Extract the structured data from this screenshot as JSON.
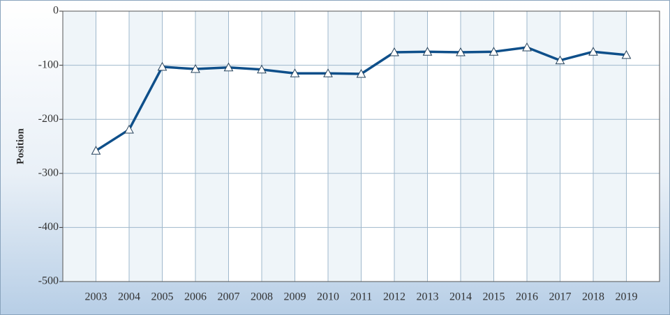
{
  "chart_data": {
    "type": "line",
    "y_label": "Position",
    "categories": [
      "2003",
      "2004",
      "2005",
      "2006",
      "2007",
      "2008",
      "2009",
      "2010",
      "2011",
      "2012",
      "2013",
      "2014",
      "2015",
      "2016",
      "2017",
      "2018",
      "2019"
    ],
    "values": [
      -258,
      -219,
      -103,
      -107,
      -104,
      -108,
      -115,
      -115,
      -116,
      -76,
      -75,
      -76,
      -75,
      -67,
      -91,
      -75,
      -81
    ],
    "color": "#0e4f8a",
    "ylim": [
      -500,
      0
    ],
    "yticks": [
      0,
      -100,
      -200,
      -300,
      -400,
      -500
    ],
    "grid": true
  }
}
